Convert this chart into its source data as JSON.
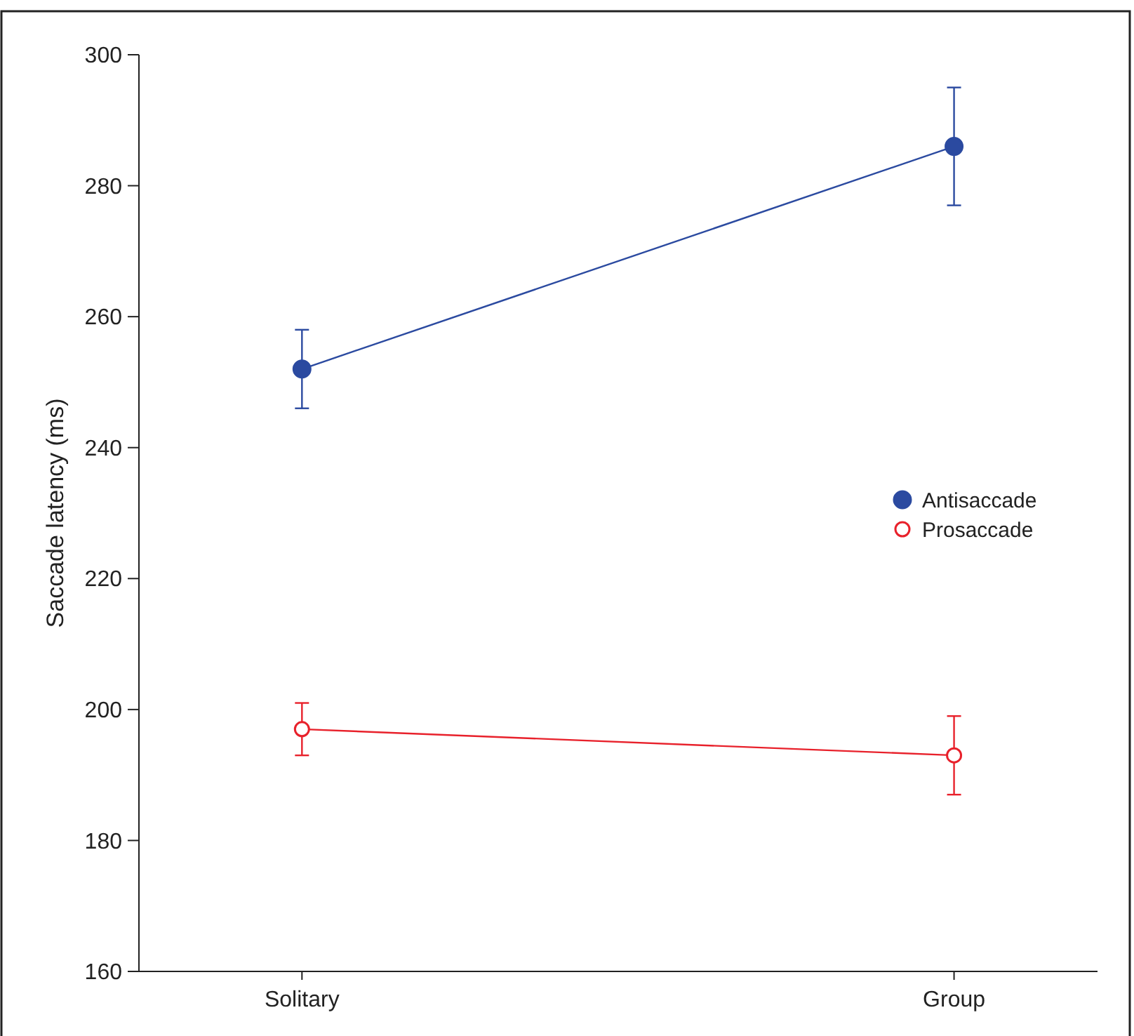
{
  "chart_data": {
    "type": "line",
    "ylabel": "Saccade latency (ms)",
    "categories": [
      "Solitary",
      "Group"
    ],
    "series": [
      {
        "name": "Antisaccade",
        "color": "#2b4aa0",
        "values": [
          252,
          286
        ],
        "errors": [
          6,
          9
        ]
      },
      {
        "name": "Prosaccade",
        "color": "#e8212b",
        "values": [
          197,
          193
        ],
        "errors": [
          4,
          6
        ]
      }
    ],
    "ylim": [
      160,
      300
    ],
    "yticks": [
      160,
      180,
      200,
      220,
      240,
      260,
      280,
      300
    ],
    "grid": false,
    "legend": "right",
    "marker": "circle",
    "line_style": "solid"
  }
}
